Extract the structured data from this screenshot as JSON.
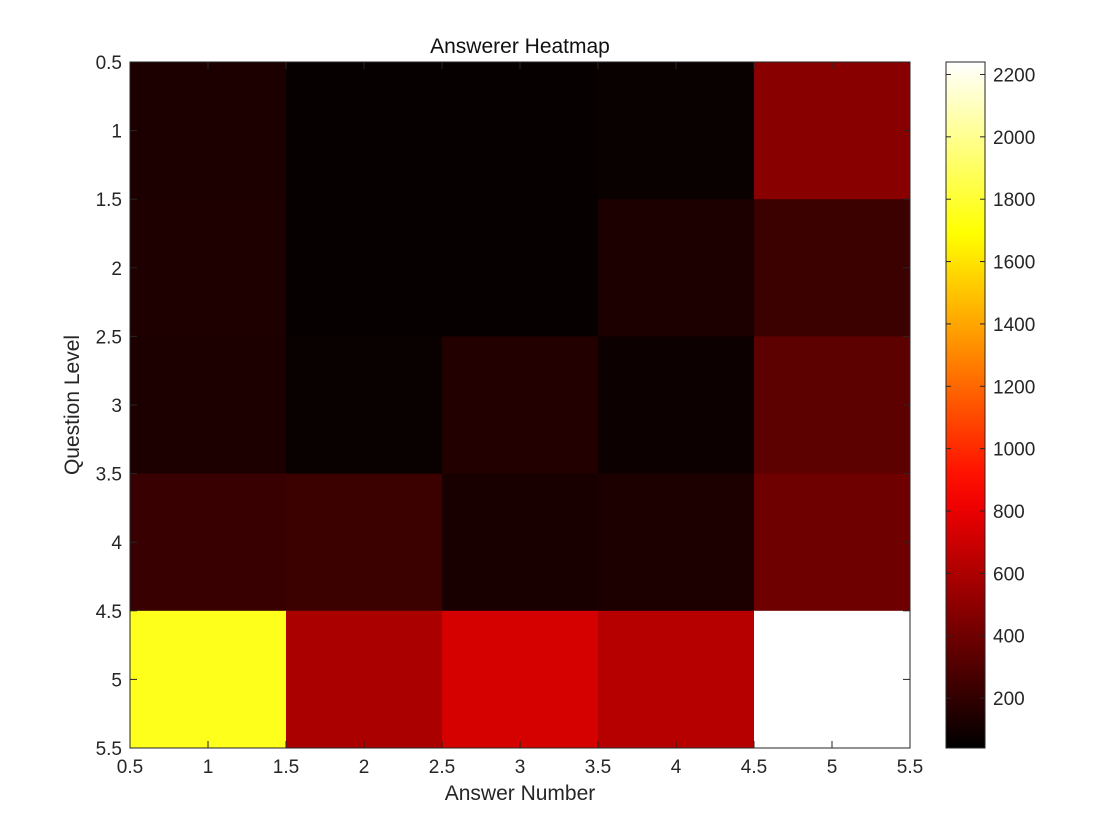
{
  "chart_data": {
    "type": "heatmap",
    "title": "Answerer Heatmap",
    "xlabel": "Answer Number",
    "ylabel": "Question Level",
    "x_categories": [
      1,
      2,
      3,
      4,
      5
    ],
    "y_categories": [
      1,
      2,
      3,
      4,
      5
    ],
    "xlim": [
      0.5,
      5.5
    ],
    "ylim": [
      0.5,
      5.5
    ],
    "x_ticks": [
      "0.5",
      "1",
      "1.5",
      "2",
      "2.5",
      "3",
      "3.5",
      "4",
      "4.5",
      "5",
      "5.5"
    ],
    "y_ticks": [
      "0.5",
      "1",
      "1.5",
      "2",
      "2.5",
      "3",
      "3.5",
      "4",
      "4.5",
      "5",
      "5.5"
    ],
    "values": [
      [
        130,
        60,
        60,
        70,
        480
      ],
      [
        140,
        60,
        60,
        130,
        230
      ],
      [
        130,
        70,
        150,
        80,
        340
      ],
      [
        220,
        230,
        120,
        130,
        400
      ],
      [
        1750,
        590,
        730,
        630,
        2240
      ]
    ],
    "colormap": "hot",
    "colorbar": {
      "min": 40,
      "max": 2240,
      "ticks": [
        "200",
        "400",
        "600",
        "800",
        "1000",
        "1200",
        "1400",
        "1600",
        "1800",
        "2000",
        "2200"
      ]
    },
    "grid": false,
    "legend": "none"
  }
}
